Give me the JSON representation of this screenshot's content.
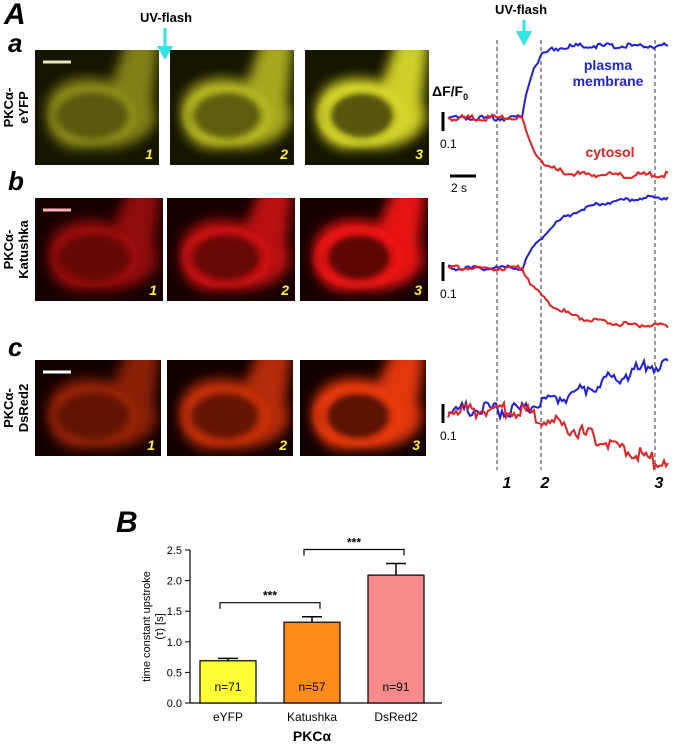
{
  "panel_a": {
    "label": "A",
    "flash_label": "UV-flash",
    "rows": [
      {
        "letter": "a",
        "construct": [
          "PKCα-",
          "eYFP"
        ],
        "frames": [
          "1",
          "2",
          "3"
        ]
      },
      {
        "letter": "b",
        "construct": [
          "PKCα-",
          "Katushka"
        ],
        "frames": [
          "1",
          "2",
          "3"
        ]
      },
      {
        "letter": "c",
        "construct": [
          "PKCα-",
          "DsRed2"
        ],
        "frames": [
          "1",
          "2",
          "3"
        ]
      }
    ],
    "traces": {
      "flash_label": "UV-flash",
      "y_label": "ΔF/F",
      "y_label_sub": "0",
      "scale_y": "0.1",
      "scale_x": "2 s",
      "membrane_label": [
        "plasma",
        "membrane"
      ],
      "cytosol_label": "cytosol",
      "markers": [
        "1",
        "2",
        "3"
      ]
    }
  },
  "chart_data": {
    "type": "bar",
    "panel_label": "B",
    "categories": [
      "eYFP",
      "Katushka",
      "DsRed2"
    ],
    "values": [
      0.69,
      1.32,
      2.09
    ],
    "errors": [
      0.04,
      0.09,
      0.19
    ],
    "colors": [
      "#ffff33",
      "#ff8c1a",
      "#f78a8a"
    ],
    "bar_labels": [
      "n=71",
      "n=57",
      "n=91"
    ],
    "ylabel": [
      "time constant upstroke",
      "(τ) [s]"
    ],
    "xlabel": "PKCα",
    "ylim": [
      0,
      2.5
    ],
    "yticks": [
      {
        "value": 0,
        "label": "0.0"
      },
      {
        "value": 0.5,
        "label": "0.5"
      },
      {
        "value": 1,
        "label": "1.0"
      },
      {
        "value": 1.5,
        "label": "1.5"
      },
      {
        "value": 2,
        "label": "2.0"
      },
      {
        "value": 2.5,
        "label": "2.5"
      }
    ],
    "significance": [
      {
        "from": 0,
        "to": 1,
        "label": "***"
      },
      {
        "from": 1,
        "to": 2,
        "label": "***"
      }
    ]
  }
}
